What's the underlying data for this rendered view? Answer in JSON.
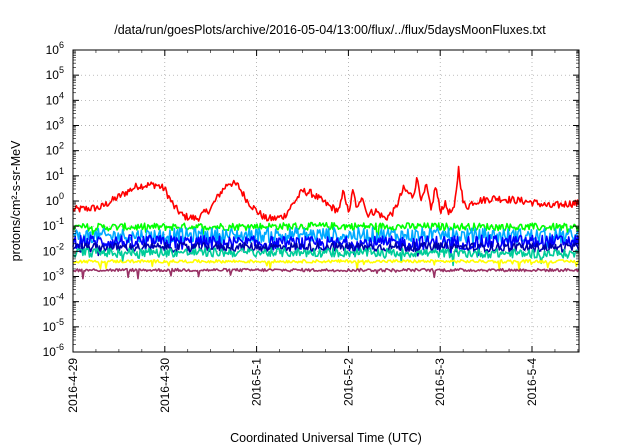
{
  "chart_data": {
    "type": "line",
    "title": "/data/run/goesPlots/archive/2016-05-04/13:00/flux/../flux/5daysMoonFluxes.txt",
    "xlabel": "Coordinated Universal Time (UTC)",
    "ylabel": "protons/cm²-s-sr-MeV",
    "y_scale": "log",
    "ylim": [
      1e-06,
      1000000.0
    ],
    "y_tick_labels": [
      {
        "base": "10",
        "exp": "-6"
      },
      {
        "base": "10",
        "exp": "-5"
      },
      {
        "base": "10",
        "exp": "-4"
      },
      {
        "base": "10",
        "exp": "-3"
      },
      {
        "base": "10",
        "exp": "-2"
      },
      {
        "base": "10",
        "exp": "-1"
      },
      {
        "base": "10",
        "exp": "0"
      },
      {
        "base": "10",
        "exp": "1"
      },
      {
        "base": "10",
        "exp": "2"
      },
      {
        "base": "10",
        "exp": "3"
      },
      {
        "base": "10",
        "exp": "4"
      },
      {
        "base": "10",
        "exp": "5"
      },
      {
        "base": "10",
        "exp": "6"
      }
    ],
    "x_range_days": [
      "2016-04-29",
      "2016-05-04 13:00"
    ],
    "x_ticks": [
      "2016-4-29",
      "2016-4-30",
      "2016-5-1",
      "2016-5-2",
      "2016-5-3",
      "2016-5-4"
    ],
    "grid": true,
    "series": [
      {
        "color": "#ff0000",
        "noise": 0.15,
        "spikes": true,
        "points": [
          [
            0.0,
            0.45
          ],
          [
            0.3,
            0.55
          ],
          [
            0.5,
            1.5
          ],
          [
            0.7,
            4.0
          ],
          [
            0.9,
            4.5
          ],
          [
            1.0,
            3.0
          ],
          [
            1.1,
            0.6
          ],
          [
            1.2,
            0.25
          ],
          [
            1.35,
            0.2
          ],
          [
            1.5,
            0.5
          ],
          [
            1.6,
            2.0
          ],
          [
            1.7,
            5.5
          ],
          [
            1.8,
            4.0
          ],
          [
            1.9,
            1.0
          ],
          [
            2.0,
            0.4
          ],
          [
            2.1,
            0.2
          ],
          [
            2.2,
            0.2
          ],
          [
            2.3,
            0.25
          ],
          [
            2.4,
            0.8
          ],
          [
            2.5,
            2.5
          ],
          [
            2.6,
            2.0
          ],
          [
            2.8,
            0.6
          ],
          [
            2.9,
            0.4
          ],
          [
            2.95,
            3.0
          ],
          [
            3.0,
            0.3
          ],
          [
            3.05,
            2.5
          ],
          [
            3.1,
            0.4
          ],
          [
            3.15,
            2.0
          ],
          [
            3.2,
            0.3
          ],
          [
            3.3,
            0.4
          ],
          [
            3.4,
            0.2
          ],
          [
            3.5,
            0.4
          ],
          [
            3.6,
            3.0
          ],
          [
            3.7,
            1.5
          ],
          [
            3.75,
            8.0
          ],
          [
            3.8,
            1.0
          ],
          [
            3.85,
            4.0
          ],
          [
            3.9,
            0.4
          ],
          [
            3.95,
            4.0
          ],
          [
            4.0,
            0.4
          ],
          [
            4.05,
            0.8
          ],
          [
            4.1,
            0.35
          ],
          [
            4.15,
            0.4
          ],
          [
            4.2,
            20.0
          ],
          [
            4.25,
            0.8
          ],
          [
            4.3,
            0.6
          ],
          [
            4.35,
            0.9
          ],
          [
            4.4,
            1.0
          ],
          [
            4.6,
            1.3
          ],
          [
            4.8,
            1.1
          ],
          [
            5.0,
            0.9
          ],
          [
            5.1,
            0.75
          ],
          [
            5.2,
            0.6
          ],
          [
            5.3,
            0.7
          ],
          [
            5.4,
            0.8
          ],
          [
            5.55,
            0.8
          ]
        ]
      },
      {
        "color": "#00ff00",
        "noise": 0.15,
        "spikes": false,
        "points": [
          [
            0.0,
            0.09
          ],
          [
            2.75,
            0.1
          ],
          [
            5.55,
            0.09
          ]
        ]
      },
      {
        "color": "#00aaff",
        "noise": 0.3,
        "spikes": false,
        "points": [
          [
            0.0,
            0.04
          ],
          [
            2.75,
            0.045
          ],
          [
            5.55,
            0.04
          ]
        ]
      },
      {
        "color": "#0000ff",
        "noise": 0.28,
        "spikes": false,
        "points": [
          [
            0.0,
            0.025
          ],
          [
            2.75,
            0.02
          ],
          [
            5.55,
            0.025
          ]
        ]
      },
      {
        "color": "#0000aa",
        "noise": 0.18,
        "spikes": false,
        "points": [
          [
            0.0,
            0.014
          ],
          [
            2.75,
            0.015
          ],
          [
            5.55,
            0.014
          ]
        ]
      },
      {
        "color": "#00cc99",
        "noise": 0.18,
        "spikes": false,
        "points": [
          [
            0.0,
            0.009
          ],
          [
            2.75,
            0.009
          ],
          [
            5.55,
            0.008
          ]
        ]
      },
      {
        "color": "#ffff00",
        "noise": 0.06,
        "spikes": false,
        "points": [
          [
            0.0,
            0.004
          ],
          [
            5.55,
            0.004
          ]
        ]
      },
      {
        "color": "#993366",
        "noise": 0.06,
        "spikes": false,
        "points": [
          [
            0.0,
            0.0018
          ],
          [
            5.55,
            0.0018
          ]
        ]
      }
    ]
  }
}
